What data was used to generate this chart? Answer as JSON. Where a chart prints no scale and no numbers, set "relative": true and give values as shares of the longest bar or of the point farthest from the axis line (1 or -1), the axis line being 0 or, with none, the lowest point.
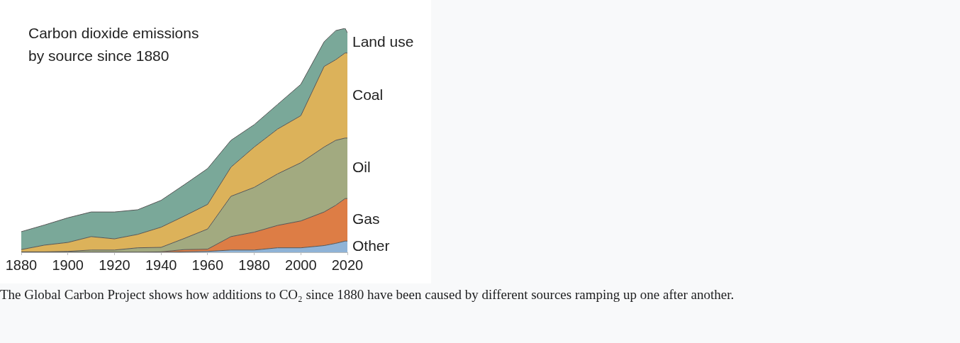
{
  "chart_data": {
    "type": "area",
    "title": "Carbon dioxide emissions\nby source since 1880",
    "stacked": true,
    "relative": true,
    "legend": false,
    "grid": false,
    "x": [
      1880,
      1890,
      1900,
      1910,
      1920,
      1930,
      1940,
      1950,
      1960,
      1970,
      1980,
      1990,
      2000,
      2010,
      2015,
      2019,
      2020
    ],
    "xlim": [
      1880,
      2020
    ],
    "xticks": [
      1880,
      1900,
      1920,
      1940,
      1960,
      1980,
      2000,
      2020
    ],
    "series": [
      {
        "name": "Other",
        "color": "#8fb3d6",
        "values": [
          0,
          0,
          0,
          0,
          0,
          0,
          0,
          0.002,
          0.004,
          0.01,
          0.01,
          0.02,
          0.02,
          0.03,
          0.04,
          0.05,
          0.05
        ]
      },
      {
        "name": "Gas",
        "color": "#dd7d45",
        "values": [
          0,
          0,
          0,
          0,
          0,
          0,
          0.002,
          0.01,
          0.01,
          0.06,
          0.08,
          0.1,
          0.12,
          0.15,
          0.17,
          0.19,
          0.19
        ]
      },
      {
        "name": "Oil",
        "color": "#a2aa80",
        "values": [
          0.002,
          0.002,
          0.004,
          0.01,
          0.01,
          0.02,
          0.02,
          0.05,
          0.09,
          0.18,
          0.2,
          0.23,
          0.26,
          0.29,
          0.29,
          0.27,
          0.27
        ]
      },
      {
        "name": "Coal",
        "color": "#dcb25a",
        "values": [
          0.01,
          0.03,
          0.04,
          0.06,
          0.05,
          0.06,
          0.09,
          0.1,
          0.11,
          0.13,
          0.18,
          0.2,
          0.21,
          0.36,
          0.36,
          0.38,
          0.38
        ]
      },
      {
        "name": "Land use",
        "color": "#7aa899",
        "values": [
          0.08,
          0.09,
          0.11,
          0.11,
          0.12,
          0.11,
          0.12,
          0.14,
          0.16,
          0.12,
          0.1,
          0.11,
          0.14,
          0.11,
          0.13,
          0.11,
          0.09
        ]
      }
    ],
    "annotations": [
      "The Global Carbon Project shows how additions to CO₂ since 1880 have been caused by different sources ramping up one after another."
    ]
  }
}
